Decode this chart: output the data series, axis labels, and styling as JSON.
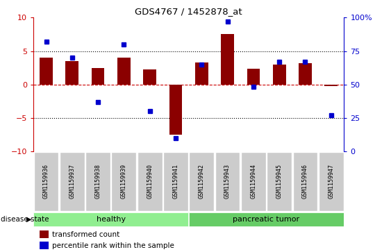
{
  "title": "GDS4767 / 1452878_at",
  "samples": [
    "GSM1159936",
    "GSM1159937",
    "GSM1159938",
    "GSM1159939",
    "GSM1159940",
    "GSM1159941",
    "GSM1159942",
    "GSM1159943",
    "GSM1159944",
    "GSM1159945",
    "GSM1159946",
    "GSM1159947"
  ],
  "transformed_count": [
    4.0,
    3.5,
    2.5,
    4.0,
    2.2,
    -7.5,
    3.3,
    7.5,
    2.3,
    3.0,
    3.2,
    -0.3
  ],
  "percentile_rank": [
    82,
    70,
    37,
    80,
    30,
    10,
    65,
    97,
    48,
    67,
    67,
    27
  ],
  "groups": [
    {
      "label": "healthy",
      "start": 0,
      "end": 6,
      "color": "#90EE90"
    },
    {
      "label": "pancreatic tumor",
      "start": 6,
      "end": 12,
      "color": "#66CC66"
    }
  ],
  "ylim_left": [
    -10,
    10
  ],
  "ylim_right": [
    0,
    100
  ],
  "yticks_left": [
    -10,
    -5,
    0,
    5,
    10
  ],
  "yticks_right": [
    0,
    25,
    50,
    75,
    100
  ],
  "bar_color": "#8B0000",
  "dot_color": "#0000CD",
  "hline_color": "#CC0000",
  "dotted_lines": [
    -5,
    5
  ],
  "background_color": "#ffffff",
  "label_transformed": "transformed count",
  "label_percentile": "percentile rank within the sample",
  "disease_state_label": "disease state",
  "left_ycolor": "#CC0000",
  "right_ycolor": "#0000CD",
  "bar_width": 0.5
}
